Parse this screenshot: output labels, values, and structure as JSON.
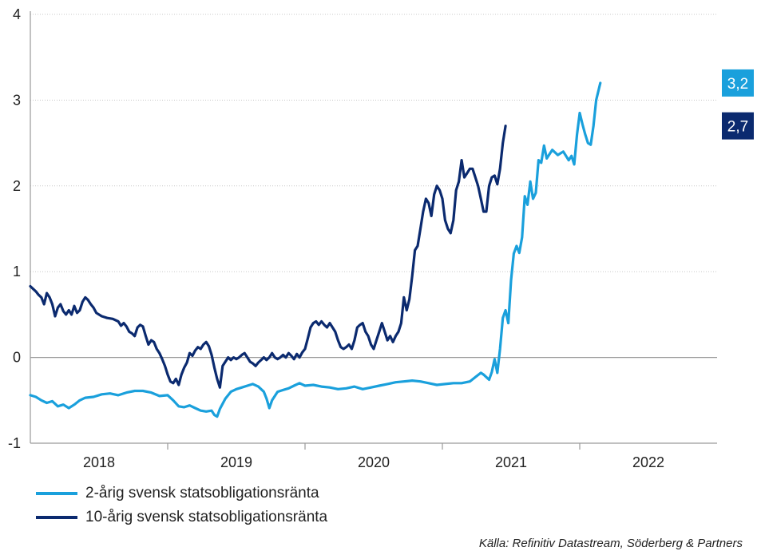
{
  "chart_data": {
    "type": "line",
    "ylim": [
      -1,
      4
    ],
    "yticks": [
      "4",
      "3",
      "2",
      "1",
      "0",
      "-1"
    ],
    "xlim": [
      2017.5,
      2022.5
    ],
    "xticks": [
      {
        "label": "2018",
        "x": 2018
      },
      {
        "label": "2019",
        "x": 2019
      },
      {
        "label": "2020",
        "x": 2020
      },
      {
        "label": "2021",
        "x": 2021
      },
      {
        "label": "2022",
        "x": 2022
      }
    ],
    "series": [
      {
        "name": "2-årig svensk statsobligationsränta",
        "color": "#1aa0dc",
        "end_label": "3,2",
        "points": [
          [
            2017.5,
            -0.44
          ],
          [
            2017.54,
            -0.46
          ],
          [
            2017.58,
            -0.5
          ],
          [
            2017.62,
            -0.53
          ],
          [
            2017.66,
            -0.51
          ],
          [
            2017.7,
            -0.57
          ],
          [
            2017.74,
            -0.55
          ],
          [
            2017.78,
            -0.59
          ],
          [
            2017.82,
            -0.55
          ],
          [
            2017.86,
            -0.5
          ],
          [
            2017.9,
            -0.47
          ],
          [
            2017.96,
            -0.46
          ],
          [
            2018.02,
            -0.43
          ],
          [
            2018.08,
            -0.42
          ],
          [
            2018.14,
            -0.44
          ],
          [
            2018.2,
            -0.41
          ],
          [
            2018.26,
            -0.39
          ],
          [
            2018.32,
            -0.39
          ],
          [
            2018.38,
            -0.41
          ],
          [
            2018.44,
            -0.45
          ],
          [
            2018.5,
            -0.44
          ],
          [
            2018.54,
            -0.5
          ],
          [
            2018.58,
            -0.57
          ],
          [
            2018.62,
            -0.58
          ],
          [
            2018.66,
            -0.56
          ],
          [
            2018.7,
            -0.59
          ],
          [
            2018.74,
            -0.62
          ],
          [
            2018.78,
            -0.63
          ],
          [
            2018.82,
            -0.62
          ],
          [
            2018.84,
            -0.67
          ],
          [
            2018.86,
            -0.69
          ],
          [
            2018.88,
            -0.6
          ],
          [
            2018.92,
            -0.48
          ],
          [
            2018.96,
            -0.4
          ],
          [
            2019.0,
            -0.37
          ],
          [
            2019.04,
            -0.35
          ],
          [
            2019.08,
            -0.33
          ],
          [
            2019.12,
            -0.31
          ],
          [
            2019.16,
            -0.34
          ],
          [
            2019.2,
            -0.4
          ],
          [
            2019.22,
            -0.48
          ],
          [
            2019.24,
            -0.59
          ],
          [
            2019.26,
            -0.5
          ],
          [
            2019.3,
            -0.4
          ],
          [
            2019.34,
            -0.38
          ],
          [
            2019.38,
            -0.36
          ],
          [
            2019.42,
            -0.33
          ],
          [
            2019.46,
            -0.3
          ],
          [
            2019.5,
            -0.33
          ],
          [
            2019.56,
            -0.32
          ],
          [
            2019.62,
            -0.34
          ],
          [
            2019.68,
            -0.35
          ],
          [
            2019.74,
            -0.37
          ],
          [
            2019.8,
            -0.36
          ],
          [
            2019.86,
            -0.34
          ],
          [
            2019.92,
            -0.37
          ],
          [
            2019.98,
            -0.35
          ],
          [
            2020.04,
            -0.33
          ],
          [
            2020.1,
            -0.31
          ],
          [
            2020.16,
            -0.29
          ],
          [
            2020.22,
            -0.28
          ],
          [
            2020.28,
            -0.27
          ],
          [
            2020.34,
            -0.28
          ],
          [
            2020.4,
            -0.3
          ],
          [
            2020.46,
            -0.32
          ],
          [
            2020.52,
            -0.31
          ],
          [
            2020.58,
            -0.3
          ],
          [
            2020.64,
            -0.3
          ],
          [
            2020.7,
            -0.28
          ],
          [
            2020.74,
            -0.23
          ],
          [
            2020.78,
            -0.18
          ],
          [
            2020.8,
            -0.2
          ],
          [
            2020.84,
            -0.26
          ],
          [
            2020.86,
            -0.17
          ],
          [
            2020.88,
            -0.02
          ],
          [
            2020.9,
            -0.18
          ],
          [
            2020.92,
            0.1
          ],
          [
            2020.94,
            0.46
          ],
          [
            2020.96,
            0.55
          ],
          [
            2020.98,
            0.4
          ],
          [
            2021.0,
            0.9
          ],
          [
            2021.02,
            1.21
          ],
          [
            2021.04,
            1.3
          ],
          [
            2021.06,
            1.22
          ],
          [
            2021.08,
            1.4
          ],
          [
            2021.1,
            1.88
          ],
          [
            2021.12,
            1.78
          ],
          [
            2021.14,
            2.05
          ],
          [
            2021.16,
            1.85
          ],
          [
            2021.18,
            1.92
          ],
          [
            2021.2,
            2.3
          ],
          [
            2021.22,
            2.27
          ],
          [
            2021.24,
            2.47
          ],
          [
            2021.26,
            2.32
          ],
          [
            2021.3,
            2.42
          ],
          [
            2021.34,
            2.36
          ],
          [
            2021.38,
            2.4
          ],
          [
            2021.42,
            2.3
          ],
          [
            2021.44,
            2.35
          ],
          [
            2021.46,
            2.25
          ],
          [
            2021.48,
            2.6
          ],
          [
            2021.5,
            2.85
          ],
          [
            2021.52,
            2.72
          ],
          [
            2021.54,
            2.6
          ],
          [
            2021.56,
            2.5
          ],
          [
            2021.58,
            2.48
          ],
          [
            2021.6,
            2.7
          ],
          [
            2021.62,
            3.0
          ],
          [
            2021.65,
            3.2
          ]
        ]
      },
      {
        "name": "10-årig svensk statsobligationsränta",
        "color": "#0b2a6f",
        "end_label": "2,7",
        "points": [
          [
            2017.5,
            0.83
          ],
          [
            2017.52,
            0.8
          ],
          [
            2017.54,
            0.77
          ],
          [
            2017.56,
            0.73
          ],
          [
            2017.58,
            0.7
          ],
          [
            2017.6,
            0.62
          ],
          [
            2017.62,
            0.75
          ],
          [
            2017.64,
            0.7
          ],
          [
            2017.66,
            0.62
          ],
          [
            2017.68,
            0.48
          ],
          [
            2017.7,
            0.58
          ],
          [
            2017.72,
            0.62
          ],
          [
            2017.74,
            0.54
          ],
          [
            2017.76,
            0.5
          ],
          [
            2017.78,
            0.55
          ],
          [
            2017.8,
            0.5
          ],
          [
            2017.82,
            0.6
          ],
          [
            2017.84,
            0.52
          ],
          [
            2017.86,
            0.55
          ],
          [
            2017.88,
            0.65
          ],
          [
            2017.9,
            0.7
          ],
          [
            2017.92,
            0.67
          ],
          [
            2017.94,
            0.62
          ],
          [
            2017.96,
            0.58
          ],
          [
            2017.98,
            0.52
          ],
          [
            2018.02,
            0.48
          ],
          [
            2018.06,
            0.46
          ],
          [
            2018.1,
            0.45
          ],
          [
            2018.14,
            0.42
          ],
          [
            2018.16,
            0.37
          ],
          [
            2018.18,
            0.4
          ],
          [
            2018.2,
            0.36
          ],
          [
            2018.22,
            0.3
          ],
          [
            2018.24,
            0.28
          ],
          [
            2018.26,
            0.25
          ],
          [
            2018.28,
            0.35
          ],
          [
            2018.3,
            0.38
          ],
          [
            2018.32,
            0.36
          ],
          [
            2018.34,
            0.25
          ],
          [
            2018.36,
            0.15
          ],
          [
            2018.38,
            0.2
          ],
          [
            2018.4,
            0.18
          ],
          [
            2018.42,
            0.1
          ],
          [
            2018.44,
            0.05
          ],
          [
            2018.46,
            -0.02
          ],
          [
            2018.48,
            -0.1
          ],
          [
            2018.5,
            -0.2
          ],
          [
            2018.52,
            -0.28
          ],
          [
            2018.54,
            -0.3
          ],
          [
            2018.56,
            -0.25
          ],
          [
            2018.58,
            -0.32
          ],
          [
            2018.6,
            -0.2
          ],
          [
            2018.62,
            -0.12
          ],
          [
            2018.64,
            -0.06
          ],
          [
            2018.66,
            0.05
          ],
          [
            2018.68,
            0.02
          ],
          [
            2018.7,
            0.08
          ],
          [
            2018.72,
            0.12
          ],
          [
            2018.74,
            0.1
          ],
          [
            2018.76,
            0.15
          ],
          [
            2018.78,
            0.18
          ],
          [
            2018.8,
            0.13
          ],
          [
            2018.82,
            0.03
          ],
          [
            2018.84,
            -0.12
          ],
          [
            2018.86,
            -0.25
          ],
          [
            2018.88,
            -0.35
          ],
          [
            2018.9,
            -0.1
          ],
          [
            2018.92,
            -0.05
          ],
          [
            2018.94,
            0.0
          ],
          [
            2018.96,
            -0.03
          ],
          [
            2018.98,
            0.0
          ],
          [
            2019.0,
            -0.02
          ],
          [
            2019.02,
            0.0
          ],
          [
            2019.04,
            0.03
          ],
          [
            2019.06,
            0.05
          ],
          [
            2019.08,
            0.0
          ],
          [
            2019.1,
            -0.05
          ],
          [
            2019.12,
            -0.07
          ],
          [
            2019.14,
            -0.1
          ],
          [
            2019.16,
            -0.06
          ],
          [
            2019.18,
            -0.03
          ],
          [
            2019.2,
            0.0
          ],
          [
            2019.22,
            -0.03
          ],
          [
            2019.24,
            0.0
          ],
          [
            2019.26,
            0.05
          ],
          [
            2019.28,
            0.0
          ],
          [
            2019.3,
            -0.02
          ],
          [
            2019.32,
            0.0
          ],
          [
            2019.34,
            0.03
          ],
          [
            2019.36,
            0.0
          ],
          [
            2019.38,
            0.05
          ],
          [
            2019.4,
            0.02
          ],
          [
            2019.42,
            -0.02
          ],
          [
            2019.44,
            0.04
          ],
          [
            2019.46,
            0.0
          ],
          [
            2019.48,
            0.06
          ],
          [
            2019.5,
            0.1
          ],
          [
            2019.52,
            0.22
          ],
          [
            2019.54,
            0.35
          ],
          [
            2019.56,
            0.4
          ],
          [
            2019.58,
            0.42
          ],
          [
            2019.6,
            0.38
          ],
          [
            2019.62,
            0.42
          ],
          [
            2019.64,
            0.38
          ],
          [
            2019.66,
            0.35
          ],
          [
            2019.68,
            0.4
          ],
          [
            2019.7,
            0.35
          ],
          [
            2019.72,
            0.3
          ],
          [
            2019.74,
            0.2
          ],
          [
            2019.76,
            0.12
          ],
          [
            2019.78,
            0.1
          ],
          [
            2019.8,
            0.12
          ],
          [
            2019.82,
            0.15
          ],
          [
            2019.84,
            0.1
          ],
          [
            2019.86,
            0.2
          ],
          [
            2019.88,
            0.35
          ],
          [
            2019.9,
            0.38
          ],
          [
            2019.92,
            0.4
          ],
          [
            2019.94,
            0.3
          ],
          [
            2019.96,
            0.25
          ],
          [
            2019.98,
            0.15
          ],
          [
            2020.0,
            0.1
          ],
          [
            2020.02,
            0.2
          ],
          [
            2020.04,
            0.3
          ],
          [
            2020.06,
            0.4
          ],
          [
            2020.08,
            0.3
          ],
          [
            2020.1,
            0.2
          ],
          [
            2020.12,
            0.25
          ],
          [
            2020.14,
            0.18
          ],
          [
            2020.16,
            0.25
          ],
          [
            2020.18,
            0.3
          ],
          [
            2020.2,
            0.4
          ],
          [
            2020.22,
            0.7
          ],
          [
            2020.24,
            0.55
          ],
          [
            2020.26,
            0.68
          ],
          [
            2020.28,
            0.95
          ],
          [
            2020.3,
            1.25
          ],
          [
            2020.32,
            1.3
          ],
          [
            2020.34,
            1.5
          ],
          [
            2020.36,
            1.7
          ],
          [
            2020.38,
            1.85
          ],
          [
            2020.4,
            1.8
          ],
          [
            2020.42,
            1.65
          ],
          [
            2020.44,
            1.9
          ],
          [
            2020.46,
            2.0
          ],
          [
            2020.48,
            1.95
          ],
          [
            2020.5,
            1.85
          ],
          [
            2020.52,
            1.6
          ],
          [
            2020.54,
            1.5
          ],
          [
            2020.56,
            1.45
          ],
          [
            2020.58,
            1.6
          ],
          [
            2020.6,
            1.95
          ],
          [
            2020.62,
            2.05
          ],
          [
            2020.64,
            2.3
          ],
          [
            2020.66,
            2.1
          ],
          [
            2020.68,
            2.15
          ],
          [
            2020.7,
            2.2
          ],
          [
            2020.72,
            2.2
          ],
          [
            2020.74,
            2.1
          ],
          [
            2020.76,
            2.0
          ],
          [
            2020.78,
            1.85
          ],
          [
            2020.8,
            1.7
          ],
          [
            2020.82,
            1.7
          ],
          [
            2020.84,
            2.0
          ],
          [
            2020.86,
            2.1
          ],
          [
            2020.88,
            2.12
          ],
          [
            2020.9,
            2.02
          ],
          [
            2020.92,
            2.2
          ],
          [
            2020.94,
            2.5
          ],
          [
            2020.96,
            2.7
          ]
        ]
      }
    ]
  },
  "legend": {
    "items": [
      {
        "label": "2-årig svensk statsobligationsränta",
        "color": "#1aa0dc"
      },
      {
        "label": "10-årig svensk statsobligationsränta",
        "color": "#0b2a6f"
      }
    ]
  },
  "source": "Källa: Refinitiv Datastream, Söderberg & Partners"
}
